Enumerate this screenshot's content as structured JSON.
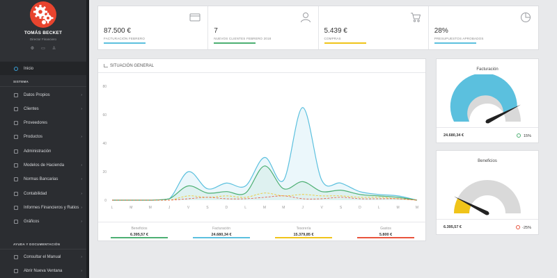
{
  "profile": {
    "name": "TOMÁS BECKET",
    "role": "Director Financiero",
    "icons": [
      "gear-icon",
      "chat-icon",
      "user-icon"
    ]
  },
  "nav": {
    "home": "Inicio",
    "section_system": "SISTEMA",
    "items": [
      {
        "label": "Datos Propios",
        "chevron": true
      },
      {
        "label": "Clientes",
        "chevron": true
      },
      {
        "label": "Proveedores",
        "chevron": false
      },
      {
        "label": "Productos",
        "chevron": true
      },
      {
        "label": "Administración",
        "chevron": false
      },
      {
        "label": "Modelos de Hacienda",
        "chevron": true
      },
      {
        "label": "Normas Bancarias",
        "chevron": true
      },
      {
        "label": "Contabilidad",
        "chevron": true
      },
      {
        "label": "Informes Financieros y Ratios",
        "chevron": true
      },
      {
        "label": "Gráficos",
        "chevron": true
      }
    ],
    "section_help": "AYUDA Y DOCUMENTACIÓN",
    "help_items": [
      {
        "label": "Consultar el Manual",
        "chevron": true
      },
      {
        "label": "Abrir Nueva Ventana",
        "chevron": true
      }
    ],
    "chevron_glyph": "›"
  },
  "stats": [
    {
      "value": "87.500 €",
      "label": "FACTURACIÓN FEBRERO",
      "color": "#5bc0de",
      "icon": "card-icon"
    },
    {
      "value": "7",
      "label": "NUEVOS CLIENTES FEBRERO 2018",
      "color": "#4caf72",
      "icon": "user-icon"
    },
    {
      "value": "5.439 €",
      "label": "COMPRAS",
      "color": "#f0c419",
      "icon": "cart-icon"
    },
    {
      "value": "28%",
      "label": "PRESUPUESTOS APROBADOS",
      "color": "#5bc0de",
      "icon": "pie-icon"
    }
  ],
  "main_chart": {
    "title": "SITUACIÓN GENERAL",
    "legend": [
      {
        "name": "Beneficios",
        "value": "6.395,57 €",
        "color": "#4caf72"
      },
      {
        "name": "Facturación",
        "value": "24.680,34 €",
        "color": "#5bc0de"
      },
      {
        "name": "Tesorería",
        "value": "15.379,85 €",
        "color": "#f0c419"
      },
      {
        "name": "Gastos",
        "value": "5.800 €",
        "color": "#e8533c"
      }
    ]
  },
  "chart_data": {
    "type": "area",
    "categories": [
      "L",
      "M",
      "M",
      "J",
      "V",
      "S",
      "D",
      "L",
      "M",
      "M",
      "J",
      "V",
      "S",
      "D",
      "L",
      "M",
      "M"
    ],
    "ylim": [
      0,
      80
    ],
    "yticks": [
      0,
      20,
      40,
      60,
      80
    ],
    "grid": false,
    "series": [
      {
        "name": "Facturación",
        "color": "#5bc0de",
        "values": [
          0,
          0,
          0,
          1,
          20,
          8,
          12,
          10,
          30,
          14,
          65,
          14,
          12,
          6,
          4,
          3,
          0
        ]
      },
      {
        "name": "Beneficios",
        "color": "#4caf72",
        "values": [
          0,
          0,
          0,
          1,
          10,
          5,
          6,
          5,
          24,
          8,
          13,
          6,
          7,
          4,
          3,
          2,
          0
        ]
      },
      {
        "name": "Tesorería",
        "color": "#f0c419",
        "values": [
          0,
          0,
          0,
          0,
          3,
          2,
          3,
          2,
          5,
          3,
          4,
          3,
          3,
          2,
          2,
          1,
          0
        ]
      },
      {
        "name": "Gastos",
        "color": "#e8533c",
        "values": [
          0,
          0,
          0,
          0,
          1,
          2,
          1,
          1,
          2,
          3,
          1,
          1,
          2,
          1,
          1,
          1,
          0
        ]
      }
    ]
  },
  "gauges": [
    {
      "title": "Facturación",
      "value": "24.680,34 €",
      "percent": "15%",
      "fill_color": "#5bc0de",
      "fill": 0.85,
      "status_icon": "up-arrow-icon",
      "status_color": "#4caf72"
    },
    {
      "title": "Beneficios",
      "value": "6.395,57 €",
      "percent": "-25%",
      "fill_color": "#f0c419",
      "fill": 0.15,
      "status_icon": "down-arrow-icon",
      "status_color": "#e8533c"
    }
  ]
}
